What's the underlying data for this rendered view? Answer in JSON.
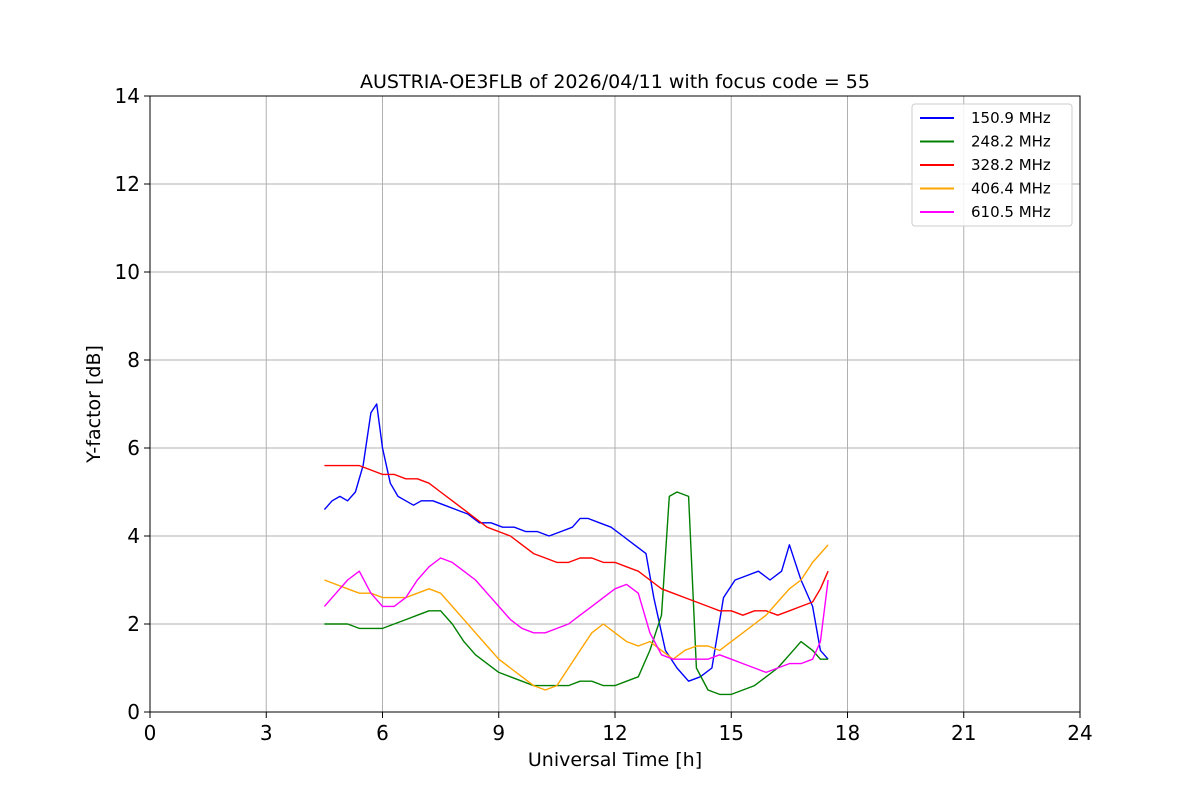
{
  "chart_data": {
    "type": "line",
    "title": "AUSTRIA-OE3FLB of 2026/04/11 with focus code = 55",
    "xlabel": "Universal Time [h]",
    "ylabel": "Y-factor [dB]",
    "xlim": [
      0,
      24
    ],
    "ylim": [
      0,
      14
    ],
    "xticks": [
      0,
      3,
      6,
      9,
      12,
      15,
      18,
      21,
      24
    ],
    "yticks": [
      0,
      2,
      4,
      6,
      8,
      10,
      12,
      14
    ],
    "grid": true,
    "legend_position": "top-right",
    "series": [
      {
        "name": "150.9 MHz",
        "color": "#0000ff",
        "x": [
          4.5,
          4.7,
          4.9,
          5.1,
          5.3,
          5.5,
          5.7,
          5.85,
          6.0,
          6.2,
          6.4,
          6.6,
          6.8,
          7.0,
          7.3,
          7.6,
          7.9,
          8.2,
          8.5,
          8.8,
          9.1,
          9.4,
          9.7,
          10.0,
          10.3,
          10.6,
          10.9,
          11.1,
          11.3,
          11.6,
          11.9,
          12.2,
          12.5,
          12.8,
          13.0,
          13.3,
          13.6,
          13.9,
          14.2,
          14.5,
          14.8,
          15.1,
          15.4,
          15.7,
          16.0,
          16.3,
          16.5,
          16.8,
          17.1,
          17.3,
          17.5
        ],
        "y": [
          4.6,
          4.8,
          4.9,
          4.8,
          5.0,
          5.6,
          6.8,
          7.0,
          6.0,
          5.2,
          4.9,
          4.8,
          4.7,
          4.8,
          4.8,
          4.7,
          4.6,
          4.5,
          4.3,
          4.3,
          4.2,
          4.2,
          4.1,
          4.1,
          4.0,
          4.1,
          4.2,
          4.4,
          4.4,
          4.3,
          4.2,
          4.0,
          3.8,
          3.6,
          2.6,
          1.4,
          1.0,
          0.7,
          0.8,
          1.0,
          2.6,
          3.0,
          3.1,
          3.2,
          3.0,
          3.2,
          3.8,
          3.0,
          2.4,
          1.4,
          1.2
        ]
      },
      {
        "name": "248.2 MHz",
        "color": "#008000",
        "x": [
          4.5,
          4.8,
          5.1,
          5.4,
          5.7,
          6.0,
          6.3,
          6.6,
          6.9,
          7.2,
          7.5,
          7.8,
          8.1,
          8.4,
          8.7,
          9.0,
          9.3,
          9.6,
          9.9,
          10.2,
          10.5,
          10.8,
          11.1,
          11.4,
          11.7,
          12.0,
          12.3,
          12.6,
          12.9,
          13.2,
          13.4,
          13.6,
          13.9,
          14.1,
          14.4,
          14.7,
          15.0,
          15.3,
          15.6,
          15.9,
          16.2,
          16.5,
          16.8,
          17.1,
          17.3,
          17.5
        ],
        "y": [
          2.0,
          2.0,
          2.0,
          1.9,
          1.9,
          1.9,
          2.0,
          2.1,
          2.2,
          2.3,
          2.3,
          2.0,
          1.6,
          1.3,
          1.1,
          0.9,
          0.8,
          0.7,
          0.6,
          0.6,
          0.6,
          0.6,
          0.7,
          0.7,
          0.6,
          0.6,
          0.7,
          0.8,
          1.4,
          2.2,
          4.9,
          5.0,
          4.9,
          1.0,
          0.5,
          0.4,
          0.4,
          0.5,
          0.6,
          0.8,
          1.0,
          1.3,
          1.6,
          1.4,
          1.2,
          1.2
        ]
      },
      {
        "name": "328.2 MHz",
        "color": "#ff0000",
        "x": [
          4.5,
          4.8,
          5.1,
          5.4,
          5.7,
          6.0,
          6.3,
          6.6,
          6.9,
          7.2,
          7.5,
          7.8,
          8.1,
          8.4,
          8.7,
          9.0,
          9.3,
          9.6,
          9.9,
          10.2,
          10.5,
          10.8,
          11.1,
          11.4,
          11.7,
          12.0,
          12.3,
          12.6,
          12.9,
          13.2,
          13.5,
          13.8,
          14.1,
          14.4,
          14.7,
          15.0,
          15.3,
          15.6,
          15.9,
          16.2,
          16.5,
          16.8,
          17.1,
          17.3,
          17.5
        ],
        "y": [
          5.6,
          5.6,
          5.6,
          5.6,
          5.5,
          5.4,
          5.4,
          5.3,
          5.3,
          5.2,
          5.0,
          4.8,
          4.6,
          4.4,
          4.2,
          4.1,
          4.0,
          3.8,
          3.6,
          3.5,
          3.4,
          3.4,
          3.5,
          3.5,
          3.4,
          3.4,
          3.3,
          3.2,
          3.0,
          2.8,
          2.7,
          2.6,
          2.5,
          2.4,
          2.3,
          2.3,
          2.2,
          2.3,
          2.3,
          2.2,
          2.3,
          2.4,
          2.5,
          2.8,
          3.2
        ]
      },
      {
        "name": "406.4 MHz",
        "color": "#ffa500",
        "x": [
          4.5,
          4.8,
          5.1,
          5.4,
          5.7,
          6.0,
          6.3,
          6.6,
          6.9,
          7.2,
          7.5,
          7.8,
          8.1,
          8.4,
          8.7,
          9.0,
          9.3,
          9.6,
          9.9,
          10.2,
          10.5,
          10.8,
          11.1,
          11.4,
          11.7,
          12.0,
          12.3,
          12.6,
          12.9,
          13.2,
          13.5,
          13.8,
          14.1,
          14.4,
          14.7,
          15.0,
          15.3,
          15.6,
          15.9,
          16.2,
          16.5,
          16.8,
          17.1,
          17.3,
          17.5
        ],
        "y": [
          3.0,
          2.9,
          2.8,
          2.7,
          2.7,
          2.6,
          2.6,
          2.6,
          2.7,
          2.8,
          2.7,
          2.4,
          2.1,
          1.8,
          1.5,
          1.2,
          1.0,
          0.8,
          0.6,
          0.5,
          0.6,
          1.0,
          1.4,
          1.8,
          2.0,
          1.8,
          1.6,
          1.5,
          1.6,
          1.4,
          1.2,
          1.4,
          1.5,
          1.5,
          1.4,
          1.6,
          1.8,
          2.0,
          2.2,
          2.5,
          2.8,
          3.0,
          3.4,
          3.6,
          3.8
        ]
      },
      {
        "name": "610.5 MHz",
        "color": "#ff00ff",
        "x": [
          4.5,
          4.8,
          5.1,
          5.4,
          5.7,
          6.0,
          6.3,
          6.6,
          6.9,
          7.2,
          7.5,
          7.8,
          8.1,
          8.4,
          8.7,
          9.0,
          9.3,
          9.6,
          9.9,
          10.2,
          10.5,
          10.8,
          11.1,
          11.4,
          11.7,
          12.0,
          12.3,
          12.6,
          12.9,
          13.2,
          13.5,
          13.8,
          14.1,
          14.4,
          14.7,
          15.0,
          15.3,
          15.6,
          15.9,
          16.2,
          16.5,
          16.8,
          17.1,
          17.3,
          17.5
        ],
        "y": [
          2.4,
          2.7,
          3.0,
          3.2,
          2.7,
          2.4,
          2.4,
          2.6,
          3.0,
          3.3,
          3.5,
          3.4,
          3.2,
          3.0,
          2.7,
          2.4,
          2.1,
          1.9,
          1.8,
          1.8,
          1.9,
          2.0,
          2.2,
          2.4,
          2.6,
          2.8,
          2.9,
          2.7,
          1.8,
          1.3,
          1.2,
          1.2,
          1.2,
          1.2,
          1.3,
          1.2,
          1.1,
          1.0,
          0.9,
          1.0,
          1.1,
          1.1,
          1.2,
          1.6,
          3.0
        ]
      }
    ]
  }
}
